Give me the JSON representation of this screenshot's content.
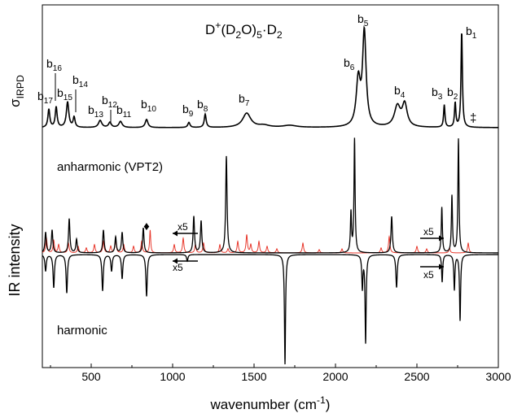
{
  "chart_data": {
    "type": "line",
    "title_parts": {
      "pre": "D",
      "sup": "+",
      "mid": "(D",
      "sub": "2",
      "mid2": "O)",
      "sub2": "5",
      "dot": "·D",
      "sub3": "2"
    },
    "xlabel": "wavenumber (cm",
    "xlabel_sup": "-1",
    "xlabel_end": ")",
    "ylabel": "IR intensity",
    "sigma_label": "σ",
    "sigma_sub": "IRPD",
    "xlim": [
      200,
      3000
    ],
    "xticks": [
      500,
      1000,
      1500,
      2000,
      2500,
      3000
    ],
    "panels": {
      "anharmonic": "anharmonic (VPT2)",
      "harmonic": "harmonic"
    },
    "scale_label": "x5",
    "diamond_symbol": "♦",
    "double_dagger": "‡",
    "peak_labels": [
      {
        "base": "b",
        "sub": "1",
        "x": 2775
      },
      {
        "base": "b",
        "sub": "2",
        "x": 2735
      },
      {
        "base": "b",
        "sub": "3",
        "x": 2668
      },
      {
        "base": "b",
        "sub": "4",
        "x": 2422
      },
      {
        "base": "b",
        "sub": "5",
        "x": 2176
      },
      {
        "base": "b",
        "sub": "6",
        "x": 2140
      },
      {
        "base": "b",
        "sub": "7",
        "x": 1450
      },
      {
        "base": "b",
        "sub": "8",
        "x": 1200
      },
      {
        "base": "b",
        "sub": "9",
        "x": 1120
      },
      {
        "base": "b",
        "sub": "10",
        "x": 840
      },
      {
        "base": "b",
        "sub": "11",
        "x": 690
      },
      {
        "base": "b",
        "sub": "12",
        "x": 620
      },
      {
        "base": "b",
        "sub": "13",
        "x": 565
      },
      {
        "base": "b",
        "sub": "14",
        "x": 400
      },
      {
        "base": "b",
        "sub": "15",
        "x": 360
      },
      {
        "base": "b",
        "sub": "16",
        "x": 295
      },
      {
        "base": "b",
        "sub": "17",
        "x": 245
      }
    ],
    "series": [
      {
        "key": "irpd",
        "color": "#000000",
        "peaks": [
          {
            "x": 240,
            "h": 0.18,
            "w": 7
          },
          {
            "x": 285,
            "h": 0.2,
            "w": 7
          },
          {
            "x": 355,
            "h": 0.25,
            "w": 9
          },
          {
            "x": 395,
            "h": 0.1,
            "w": 7
          },
          {
            "x": 555,
            "h": 0.07,
            "w": 12
          },
          {
            "x": 615,
            "h": 0.05,
            "w": 10
          },
          {
            "x": 680,
            "h": 0.06,
            "w": 12
          },
          {
            "x": 840,
            "h": 0.08,
            "w": 10
          },
          {
            "x": 1100,
            "h": 0.05,
            "w": 8
          },
          {
            "x": 1200,
            "h": 0.13,
            "w": 7
          },
          {
            "x": 1455,
            "h": 0.14,
            "w": 30
          },
          {
            "x": 1560,
            "h": 0.02,
            "w": 40
          },
          {
            "x": 1720,
            "h": 0.02,
            "w": 50
          },
          {
            "x": 2140,
            "h": 0.45,
            "w": 15
          },
          {
            "x": 2177,
            "h": 0.92,
            "w": 13
          },
          {
            "x": 2380,
            "h": 0.2,
            "w": 22
          },
          {
            "x": 2425,
            "h": 0.22,
            "w": 18
          },
          {
            "x": 2668,
            "h": 0.22,
            "w": 5
          },
          {
            "x": 2735,
            "h": 0.24,
            "w": 5
          },
          {
            "x": 2775,
            "h": 0.95,
            "w": 5
          }
        ]
      },
      {
        "key": "anharmonic_x5",
        "color": "#e8382c",
        "peaks": [
          {
            "x": 225,
            "h": 0.18,
            "w": 5
          },
          {
            "x": 270,
            "h": 0.15,
            "w": 5
          },
          {
            "x": 300,
            "h": 0.1,
            "w": 5
          },
          {
            "x": 360,
            "h": 0.12,
            "w": 5
          },
          {
            "x": 420,
            "h": 0.08,
            "w": 5
          },
          {
            "x": 470,
            "h": 0.06,
            "w": 5
          },
          {
            "x": 520,
            "h": 0.1,
            "w": 5
          },
          {
            "x": 575,
            "h": 0.14,
            "w": 5
          },
          {
            "x": 620,
            "h": 0.08,
            "w": 5
          },
          {
            "x": 650,
            "h": 0.16,
            "w": 5
          },
          {
            "x": 700,
            "h": 0.1,
            "w": 5
          },
          {
            "x": 760,
            "h": 0.08,
            "w": 5
          },
          {
            "x": 810,
            "h": 0.14,
            "w": 5
          },
          {
            "x": 862,
            "h": 0.28,
            "w": 4
          },
          {
            "x": 1010,
            "h": 0.1,
            "w": 5
          },
          {
            "x": 1065,
            "h": 0.18,
            "w": 5
          },
          {
            "x": 1140,
            "h": 0.1,
            "w": 5
          },
          {
            "x": 1190,
            "h": 0.12,
            "w": 5
          },
          {
            "x": 1290,
            "h": 0.1,
            "w": 5
          },
          {
            "x": 1340,
            "h": 0.05,
            "w": 5
          },
          {
            "x": 1400,
            "h": 0.14,
            "w": 5
          },
          {
            "x": 1455,
            "h": 0.22,
            "w": 5
          },
          {
            "x": 1480,
            "h": 0.1,
            "w": 5
          },
          {
            "x": 1530,
            "h": 0.14,
            "w": 5
          },
          {
            "x": 1580,
            "h": 0.08,
            "w": 5
          },
          {
            "x": 1640,
            "h": 0.05,
            "w": 5
          },
          {
            "x": 1800,
            "h": 0.12,
            "w": 5
          },
          {
            "x": 1900,
            "h": 0.04,
            "w": 5
          },
          {
            "x": 2040,
            "h": 0.05,
            "w": 5
          },
          {
            "x": 2280,
            "h": 0.06,
            "w": 5
          },
          {
            "x": 2330,
            "h": 0.2,
            "w": 5
          },
          {
            "x": 2500,
            "h": 0.08,
            "w": 5
          },
          {
            "x": 2560,
            "h": 0.05,
            "w": 5
          },
          {
            "x": 2700,
            "h": 0.06,
            "w": 5
          },
          {
            "x": 2815,
            "h": 0.12,
            "w": 5
          }
        ]
      },
      {
        "key": "anharmonic",
        "color": "#000000",
        "peaks": [
          {
            "x": 220,
            "h": 0.18,
            "w": 5
          },
          {
            "x": 260,
            "h": 0.2,
            "w": 5
          },
          {
            "x": 365,
            "h": 0.3,
            "w": 5
          },
          {
            "x": 410,
            "h": 0.12,
            "w": 5
          },
          {
            "x": 575,
            "h": 0.2,
            "w": 5
          },
          {
            "x": 650,
            "h": 0.14,
            "w": 5
          },
          {
            "x": 690,
            "h": 0.18,
            "w": 5
          },
          {
            "x": 820,
            "h": 0.22,
            "w": 5
          },
          {
            "x": 1130,
            "h": 0.32,
            "w": 5
          },
          {
            "x": 1175,
            "h": 0.28,
            "w": 5
          },
          {
            "x": 1330,
            "h": 0.85,
            "w": 5
          },
          {
            "x": 2095,
            "h": 0.35,
            "w": 4
          },
          {
            "x": 2117,
            "h": 1.0,
            "w": 4
          },
          {
            "x": 2345,
            "h": 0.32,
            "w": 5
          },
          {
            "x": 2653,
            "h": 0.4,
            "w": 4
          },
          {
            "x": 2715,
            "h": 0.5,
            "w": 4
          },
          {
            "x": 2755,
            "h": 1.0,
            "w": 4
          }
        ]
      },
      {
        "key": "harmonic",
        "color": "#000000",
        "peaks": [
          {
            "x": 220,
            "h": 0.15,
            "w": 5
          },
          {
            "x": 270,
            "h": 0.3,
            "w": 5
          },
          {
            "x": 350,
            "h": 0.35,
            "w": 5
          },
          {
            "x": 570,
            "h": 0.33,
            "w": 5
          },
          {
            "x": 625,
            "h": 0.15,
            "w": 5
          },
          {
            "x": 690,
            "h": 0.22,
            "w": 5
          },
          {
            "x": 840,
            "h": 0.38,
            "w": 5
          },
          {
            "x": 1090,
            "h": 0.06,
            "w": 5
          },
          {
            "x": 1690,
            "h": 1.0,
            "w": 4
          },
          {
            "x": 2165,
            "h": 0.3,
            "w": 4
          },
          {
            "x": 2185,
            "h": 0.8,
            "w": 4
          },
          {
            "x": 2375,
            "h": 0.3,
            "w": 5
          },
          {
            "x": 2655,
            "h": 0.25,
            "w": 4
          },
          {
            "x": 2730,
            "h": 0.32,
            "w": 4
          },
          {
            "x": 2765,
            "h": 0.6,
            "w": 4
          }
        ]
      }
    ]
  }
}
